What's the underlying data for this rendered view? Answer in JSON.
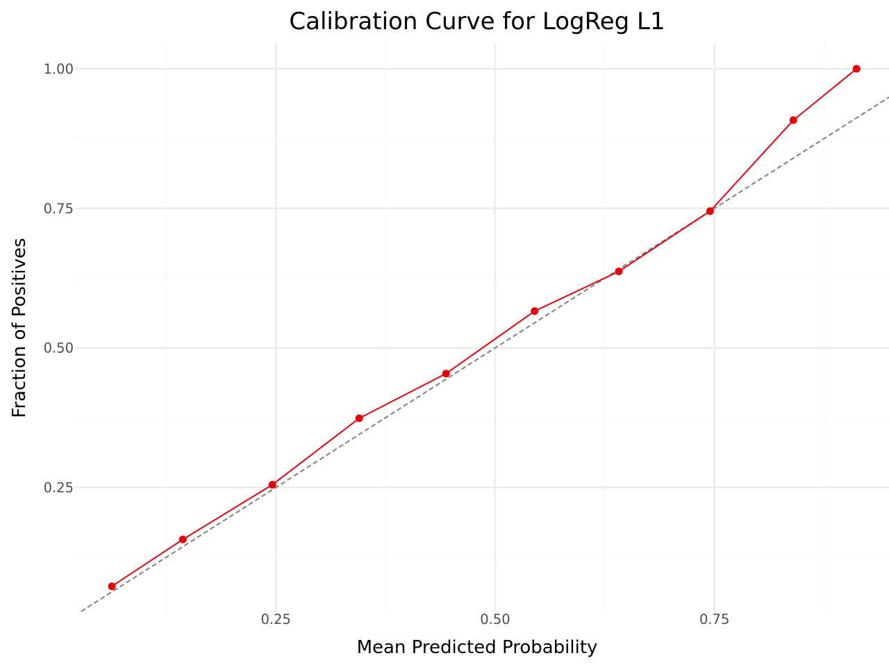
{
  "chart_data": {
    "type": "line",
    "title": "Calibration Curve for LogReg L1",
    "xlabel": "Mean Predicted Probability",
    "ylabel": "Fraction of Positives",
    "xlim": [
      0.021,
      0.949
    ],
    "ylim": [
      0.028,
      1.046
    ],
    "x_ticks": [
      0.25,
      0.5,
      0.75
    ],
    "x_tick_labels": [
      "0.25",
      "0.50",
      "0.75"
    ],
    "y_ticks": [
      0.25,
      0.5,
      0.75,
      1.0
    ],
    "y_tick_labels": [
      "0.25",
      "0.50",
      "0.75",
      "1.00"
    ],
    "x_minor_ticks": [
      0.125,
      0.375,
      0.625,
      0.875
    ],
    "y_minor_ticks": [
      0.125,
      0.375,
      0.625,
      0.875
    ],
    "grid": true,
    "series": [
      {
        "color": "#e8000b",
        "x": [
          0.063,
          0.144,
          0.246,
          0.345,
          0.444,
          0.545,
          0.641,
          0.745,
          0.84,
          0.912
        ],
        "y": [
          0.073,
          0.157,
          0.255,
          0.374,
          0.454,
          0.566,
          0.637,
          0.745,
          0.908,
          1.0
        ]
      }
    ],
    "reference_line": {
      "style": "dashed",
      "color": "#7f7f7f",
      "x": [
        0.0,
        1.0
      ],
      "y": [
        0.0,
        1.0
      ]
    },
    "colors": {
      "background": "#ffffff",
      "major_grid": "#ebebeb",
      "minor_grid": "#f5f5f5"
    }
  }
}
